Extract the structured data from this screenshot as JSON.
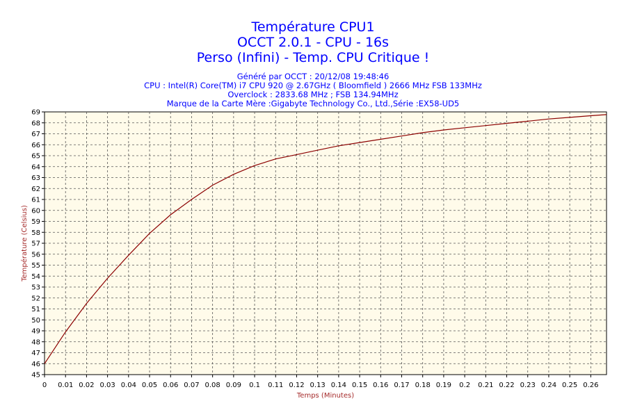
{
  "header": {
    "title_1": "Température CPU1",
    "title_2": "OCCT 2.0.1 - CPU - 16s",
    "title_3": "Perso (Infini) - Temp. CPU Critique !",
    "info_1": "Généré par OCCT : 20/12/08 19:48:46",
    "info_2": "CPU : Intel(R) Core(TM) i7 CPU 920 @ 2.67GHz ( Bloomfield ) 2666 MHz FSB 133MHz",
    "info_3": "Overclock : 2833.68 MHz ; FSB 134.94MHz",
    "info_4": "Marque de la Carte Mère :Gigabyte Technology Co., Ltd.,Série :EX58-UD5"
  },
  "colors": {
    "title": "#0000ff",
    "axis_label": "#a52a2a",
    "line": "#8b0000",
    "plot_background": "#fffbea",
    "grid": "#555555"
  },
  "chart_data": {
    "type": "line",
    "xlabel": "Temps (Minutes)",
    "ylabel": "Température (Celsius)",
    "xlim": [
      0,
      0.2675
    ],
    "ylim": [
      45,
      69
    ],
    "grid": true,
    "x_ticks": [
      "0",
      "0.01",
      "0.02",
      "0.03",
      "0.04",
      "0.05",
      "0.06",
      "0.07",
      "0.08",
      "0.09",
      "0.1",
      "0.11",
      "0.12",
      "0.13",
      "0.14",
      "0.15",
      "0.16",
      "0.17",
      "0.18",
      "0.19",
      "0.2",
      "0.21",
      "0.22",
      "0.23",
      "0.24",
      "0.25",
      "0.26"
    ],
    "y_ticks": [
      "45",
      "46",
      "47",
      "48",
      "49",
      "50",
      "51",
      "52",
      "53",
      "54",
      "55",
      "56",
      "57",
      "58",
      "59",
      "60",
      "61",
      "62",
      "63",
      "64",
      "65",
      "66",
      "67",
      "68",
      "69"
    ],
    "series": [
      {
        "x": [
          0,
          0.01,
          0.02,
          0.03,
          0.04,
          0.05,
          0.06,
          0.07,
          0.08,
          0.09,
          0.1,
          0.11,
          0.12,
          0.13,
          0.14,
          0.15,
          0.16,
          0.17,
          0.18,
          0.19,
          0.2,
          0.21,
          0.22,
          0.23,
          0.24,
          0.25,
          0.26,
          0.2675
        ],
        "y": [
          46.0,
          48.9,
          51.5,
          53.8,
          55.9,
          57.9,
          59.6,
          61.0,
          62.3,
          63.3,
          64.1,
          64.7,
          65.1,
          65.5,
          65.9,
          66.2,
          66.5,
          66.8,
          67.1,
          67.35,
          67.55,
          67.75,
          67.95,
          68.15,
          68.35,
          68.5,
          68.65,
          68.75
        ]
      }
    ]
  }
}
